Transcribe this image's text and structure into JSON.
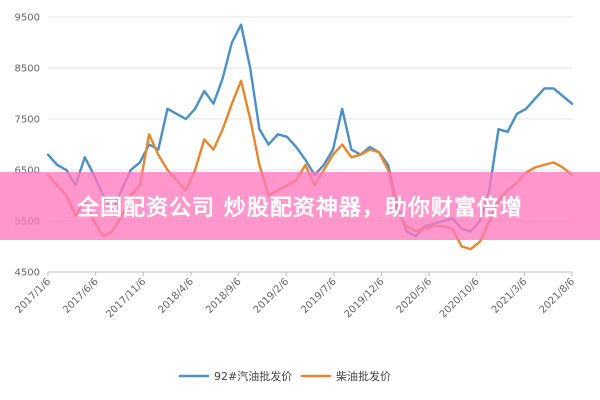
{
  "chart_data": {
    "type": "line",
    "title": "",
    "xlabel": "",
    "ylabel": "",
    "ylim": [
      4500,
      9500
    ],
    "yticks": [
      "4500",
      "5500",
      "6500",
      "7500",
      "8500",
      "9500"
    ],
    "x_ticks": [
      "2017/1/6",
      "2017/6/6",
      "2017/11/6",
      "2018/4/6",
      "2018/9/6",
      "2019/2/6",
      "2019/7/6",
      "2019/12/6",
      "2020/5/6",
      "2020/10/6",
      "2021/3/6",
      "2021/8/6"
    ],
    "grid": true,
    "legend_position": "bottom",
    "series": [
      {
        "name": "92#汽油批发价",
        "color": "#4a90c8",
        "x": [
          0,
          1,
          2,
          3,
          4,
          5,
          6,
          7,
          8,
          9,
          10,
          11,
          12,
          13,
          14,
          15,
          16,
          17,
          18,
          19,
          20,
          21,
          22,
          23,
          24,
          25,
          26,
          27,
          28,
          29,
          30,
          31,
          32,
          33,
          34,
          35,
          36,
          37,
          38,
          39,
          40,
          41,
          42,
          43,
          44,
          45,
          46,
          47,
          48,
          49,
          50,
          51,
          52,
          53,
          54,
          55,
          56,
          57
        ],
        "values": [
          6800,
          6600,
          6500,
          6200,
          6750,
          6400,
          6000,
          5700,
          6100,
          6500,
          6650,
          7000,
          6900,
          7700,
          7600,
          7500,
          7700,
          8050,
          7800,
          8300,
          9000,
          9350,
          8500,
          7300,
          7000,
          7200,
          7150,
          6950,
          6700,
          6400,
          6600,
          6900,
          7700,
          6900,
          6800,
          6950,
          6850,
          6600,
          5800,
          5300,
          5200,
          5400,
          5450,
          5500,
          5550,
          5350,
          5300,
          5500,
          6100,
          7300,
          7250,
          7600,
          7700,
          7900,
          8100,
          8100,
          7950,
          7800
        ]
      },
      {
        "name": "柴油批发价",
        "color": "#e8862c",
        "x": [
          0,
          1,
          2,
          3,
          4,
          5,
          6,
          7,
          8,
          9,
          10,
          11,
          12,
          13,
          14,
          15,
          16,
          17,
          18,
          19,
          20,
          21,
          22,
          23,
          24,
          25,
          26,
          27,
          28,
          29,
          30,
          31,
          32,
          33,
          34,
          35,
          36,
          37,
          38,
          39,
          40,
          41,
          42,
          43,
          44,
          45,
          46,
          47,
          48,
          49,
          50,
          51,
          52,
          53,
          54,
          55,
          56,
          57
        ],
        "values": [
          6400,
          6200,
          6000,
          5600,
          5900,
          5500,
          5200,
          5300,
          5600,
          6000,
          6200,
          7200,
          6800,
          6500,
          6300,
          6100,
          6500,
          7100,
          6900,
          7300,
          7800,
          8250,
          7500,
          6600,
          6000,
          6100,
          6200,
          6300,
          6600,
          6200,
          6500,
          6800,
          7000,
          6750,
          6800,
          6900,
          6850,
          6500,
          5700,
          5400,
          5300,
          5350,
          5400,
          5400,
          5350,
          5000,
          4950,
          5100,
          5500,
          5900,
          6100,
          6250,
          6450,
          6550,
          6600,
          6650,
          6550,
          6400
        ]
      }
    ]
  },
  "banner": {
    "text": "全国配资公司 炒股配资神器，助你财富倍增"
  }
}
